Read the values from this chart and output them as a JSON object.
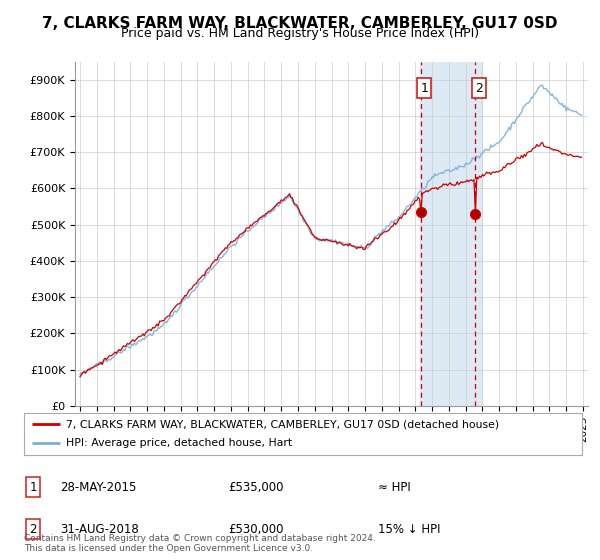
{
  "title": "7, CLARKS FARM WAY, BLACKWATER, CAMBERLEY, GU17 0SD",
  "subtitle": "Price paid vs. HM Land Registry's House Price Index (HPI)",
  "ylim": [
    0,
    950000
  ],
  "yticks": [
    0,
    100000,
    200000,
    300000,
    400000,
    500000,
    600000,
    700000,
    800000,
    900000
  ],
  "ytick_labels": [
    "£0",
    "£100K",
    "£200K",
    "£300K",
    "£400K",
    "£500K",
    "£600K",
    "£700K",
    "£800K",
    "£900K"
  ],
  "hpi_color": "#7aaed6",
  "price_color": "#cc0000",
  "sale1_date": "28-MAY-2015",
  "sale1_price": "£535,000",
  "sale1_hpi": "≈ HPI",
  "sale2_date": "31-AUG-2018",
  "sale2_price": "£530,000",
  "sale2_hpi": "15% ↓ HPI",
  "legend_line1": "7, CLARKS FARM WAY, BLACKWATER, CAMBERLEY, GU17 0SD (detached house)",
  "legend_line2": "HPI: Average price, detached house, Hart",
  "footer": "Contains HM Land Registry data © Crown copyright and database right 2024.\nThis data is licensed under the Open Government Licence v3.0.",
  "background_color": "#ffffff",
  "highlight_color": "#ddeaf5"
}
